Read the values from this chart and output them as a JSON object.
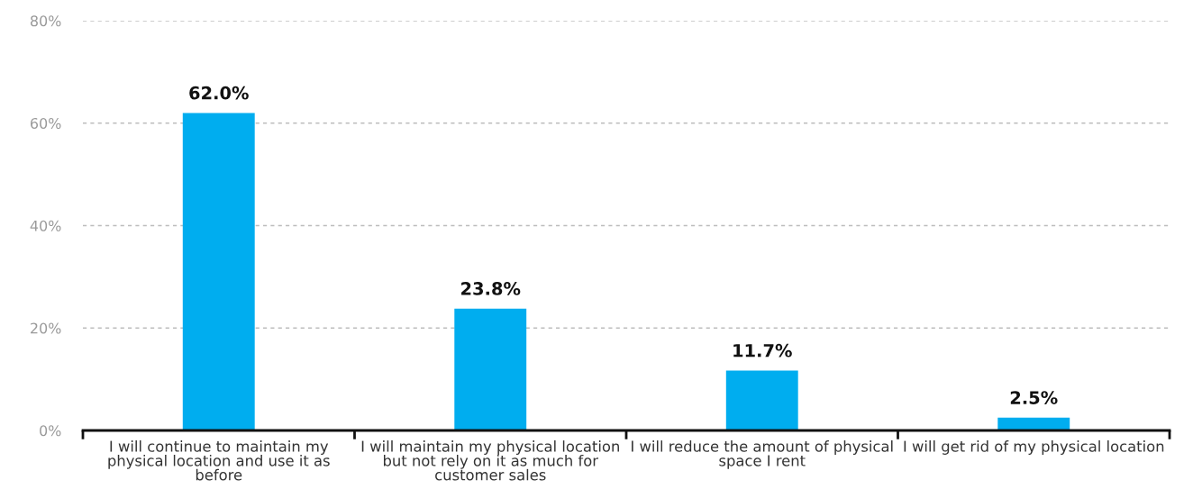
{
  "chart_data": {
    "type": "bar",
    "categories": [
      "I will continue to maintain my physical location and use it as before",
      "I will maintain my physical location but not rely on it as much for customer sales",
      "I will reduce the amount of physical space I rent",
      "I will get rid of my physical location"
    ],
    "values": [
      62.0,
      23.8,
      11.7,
      2.5
    ],
    "value_labels": [
      "62.0%",
      "23.8%",
      "11.7%",
      "2.5%"
    ],
    "color": "#00adef",
    "ylim": [
      0,
      80
    ],
    "yticks": [
      {
        "value": 0,
        "label": "0%"
      },
      {
        "value": 20,
        "label": "20%"
      },
      {
        "value": 40,
        "label": "40%"
      },
      {
        "value": 60,
        "label": "60%"
      },
      {
        "value": 80,
        "label": "80%"
      }
    ],
    "grid": "y"
  }
}
